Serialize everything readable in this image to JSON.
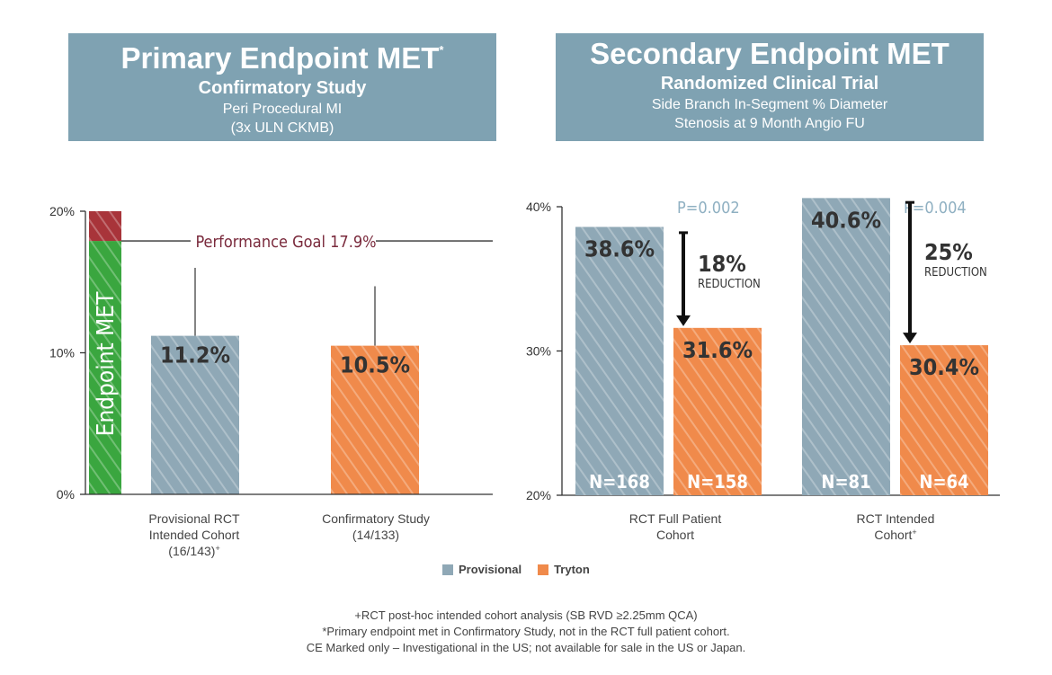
{
  "left_header": {
    "title": "Primary Endpoint MET",
    "title_mark": "*",
    "subtitle": "Confirmatory Study",
    "desc_line1": "Peri Procedural MI",
    "desc_line2": "(3x ULN CKMB)"
  },
  "right_header": {
    "title": "Secondary Endpoint MET",
    "subtitle": "Randomized Clinical Trial",
    "desc_line1": "Side Branch In-Segment % Diameter",
    "desc_line2": "Stenosis at 9 Month Angio FU"
  },
  "colors": {
    "header_bg": "#7fa2b2",
    "provisional": "#8fa8b6",
    "tryton": "#f08a4b",
    "endpoint_green": "#3aa63f",
    "endpoint_red": "#a8343a",
    "goal_text": "#7a2a3c",
    "p_value": "#8fb0c2"
  },
  "chart_data": [
    {
      "type": "bar",
      "yticks": [
        "0%",
        "10%",
        "20%"
      ],
      "ylim": [
        0,
        20
      ],
      "endpoint_bar": {
        "label": "Endpoint MET",
        "met_value": 17.9,
        "top_value": 20
      },
      "performance_goal": {
        "label": "Performance Goal 17.9%",
        "value": 17.9
      },
      "categories": [
        {
          "lines": [
            "Provisional RCT",
            "Intended Cohort",
            "(16/143)"
          ],
          "mark": "+"
        },
        {
          "lines": [
            "Confirmatory Study",
            "(14/133)"
          ],
          "mark": ""
        }
      ],
      "bars": [
        {
          "series": "Provisional",
          "value": 11.2,
          "label": "11.2%",
          "error_top": 16.0
        },
        {
          "series": "Tryton",
          "value": 10.5,
          "label": "10.5%",
          "error_top": 14.7
        }
      ]
    },
    {
      "type": "bar",
      "yticks": [
        "20%",
        "30%",
        "40%"
      ],
      "ylim": [
        20,
        40
      ],
      "categories": [
        {
          "lines": [
            "RCT Full Patient",
            "Cohort"
          ],
          "mark": ""
        },
        {
          "lines": [
            "RCT Intended",
            "Cohort"
          ],
          "mark": "+"
        }
      ],
      "groups": [
        {
          "bars": [
            {
              "series": "Provisional",
              "value": 38.6,
              "label": "38.6%",
              "n": "N=168"
            },
            {
              "series": "Tryton",
              "value": 31.6,
              "label": "31.6%",
              "n": "N=158"
            }
          ],
          "p_value": "P=0.002",
          "reduction_pct": "18%",
          "reduction_word": "REDUCTION"
        },
        {
          "bars": [
            {
              "series": "Provisional",
              "value": 40.6,
              "label": "40.6%",
              "n": "N=81"
            },
            {
              "series": "Tryton",
              "value": 30.4,
              "label": "30.4%",
              "n": "N=64"
            }
          ],
          "p_value": "P=0.004",
          "reduction_pct": "25%",
          "reduction_word": "REDUCTION"
        }
      ]
    }
  ],
  "legend": [
    {
      "name": "Provisional",
      "color": "#8fa8b6"
    },
    {
      "name": "Tryton",
      "color": "#f08a4b"
    }
  ],
  "footnotes": [
    "+RCT post-hoc intended cohort analysis (SB RVD ≥2.25mm QCA)",
    "*Primary endpoint met in Confirmatory Study, not in the RCT full patient cohort.",
    "CE Marked only – Investigational in the US; not available for sale in the US or Japan."
  ]
}
